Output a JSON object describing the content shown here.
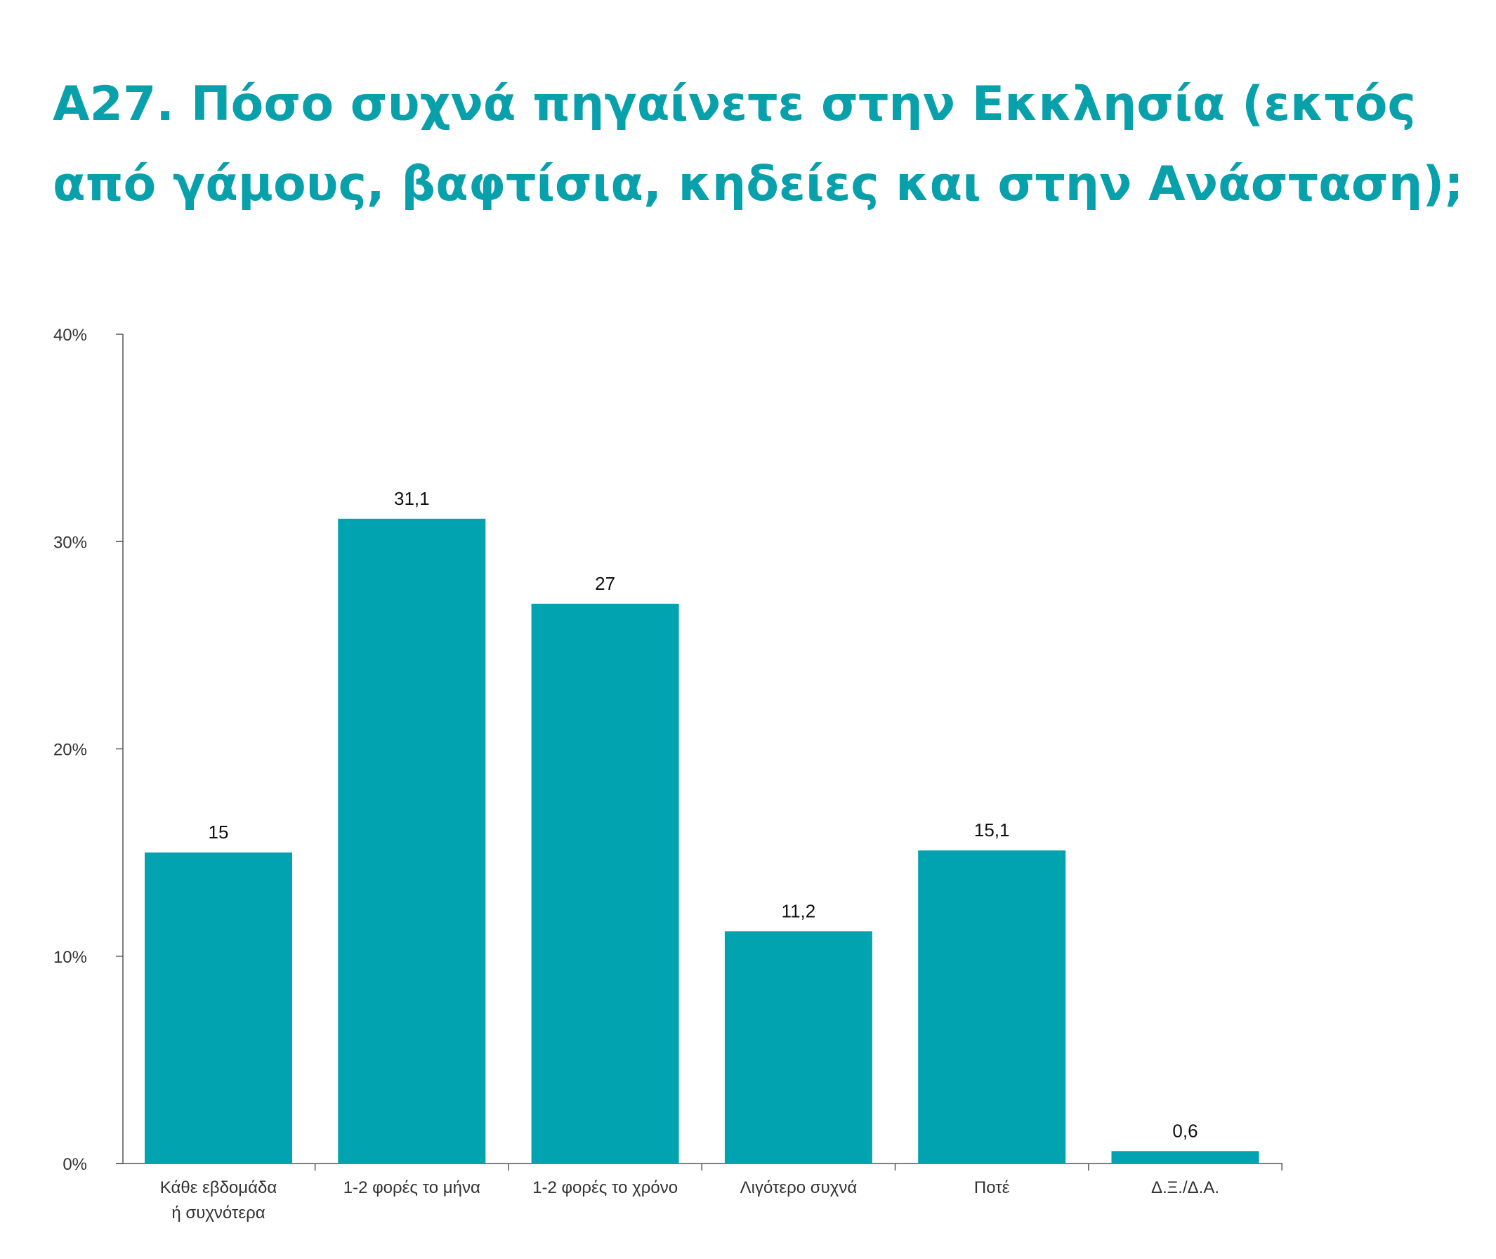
{
  "title": {
    "line1": "A27. Πόσο συχνά πηγαίνετε στην Εκκλησία (εκτός",
    "line2": "από γάμους, βαφτίσια, κηδείες και στην Ανάσταση);"
  },
  "colors": {
    "bar": "#01a3b0",
    "title": "#08a0ab",
    "axis": "#555555"
  },
  "chart_data": {
    "type": "bar",
    "categories": [
      [
        "Κάθε εβδομάδα",
        "ή συχνότερα"
      ],
      [
        "1-2 φορές το μήνα"
      ],
      [
        "1-2 φορές το χρόνο"
      ],
      [
        "Λιγότερο συχνά"
      ],
      [
        "Ποτέ"
      ],
      [
        "Δ.Ξ./Δ.Α."
      ]
    ],
    "values": [
      15,
      31.1,
      27,
      11.2,
      15.1,
      0.6
    ],
    "value_labels": [
      "15",
      "31,1",
      "27",
      "11,2",
      "15,1",
      "0,6"
    ],
    "yticks": [
      0,
      10,
      20,
      30,
      40
    ],
    "ytick_labels": [
      "0%",
      "10%",
      "20%",
      "30%",
      "40%"
    ],
    "ylim": [
      0,
      40
    ],
    "grid": false,
    "legend": "none"
  }
}
